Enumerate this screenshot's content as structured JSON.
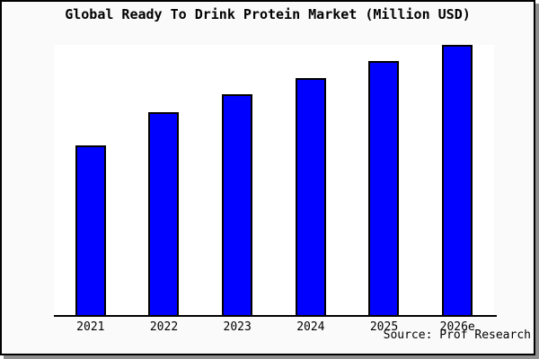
{
  "title": "Global Ready To Drink Protein Market (Million USD)",
  "source": "Source: Prof Research",
  "colors": {
    "page_background": "#fafafa",
    "plot_background": "#ffffff",
    "frame_border": "#000000",
    "frame_shadow": "#8f8f8f",
    "bar_fill": "#0000ff",
    "bar_border": "#000000",
    "axis_line": "#000000",
    "text": "#000000"
  },
  "chart_data": {
    "type": "bar",
    "title": "Global Ready To Drink Protein Market (Million USD)",
    "categories": [
      "2021",
      "2022",
      "2023",
      "2024",
      "2025",
      "2026e"
    ],
    "values": [
      62.9,
      75.3,
      81.8,
      87.9,
      93.9,
      100
    ],
    "series_note": "no y-axis or data labels shown; values estimated as percent of tallest bar",
    "xlabel": "",
    "ylabel": "",
    "ylim": [
      0,
      100
    ],
    "grid": false,
    "legend": false,
    "bar_color": "#0000ff",
    "bar_border_color": "#000000",
    "source": "Source: Prof Research"
  }
}
